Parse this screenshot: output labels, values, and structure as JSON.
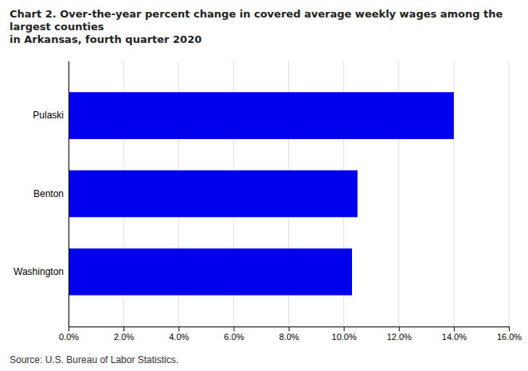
{
  "chart_data": {
    "type": "bar",
    "orientation": "horizontal",
    "title": "Chart 2. Over-the-year percent change in covered average weekly wages among the largest counties\nin Arkansas, fourth quarter 2020",
    "source": "Source: U.S. Bureau of Labor Statistics.",
    "categories": [
      "Washington",
      "Benton",
      "Pulaski"
    ],
    "values": [
      0.103,
      0.105,
      0.14
    ],
    "color": "#0000EE",
    "xlim": [
      0,
      0.16
    ],
    "xticks": [
      {
        "value": 0.0,
        "label": "0.0%"
      },
      {
        "value": 0.02,
        "label": "2.0%"
      },
      {
        "value": 0.04,
        "label": "4.0%"
      },
      {
        "value": 0.06,
        "label": "6.0%"
      },
      {
        "value": 0.08,
        "label": "8.0%"
      },
      {
        "value": 0.1,
        "label": "10.0%"
      },
      {
        "value": 0.12,
        "label": "12.0%"
      },
      {
        "value": 0.14,
        "label": "14.0%"
      },
      {
        "value": 0.16,
        "label": "16.0%"
      }
    ],
    "grid": true
  }
}
